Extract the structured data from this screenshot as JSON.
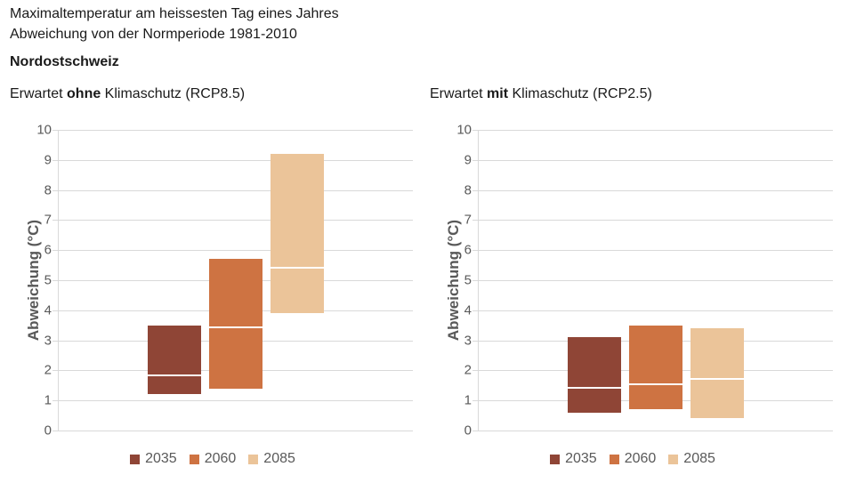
{
  "header": {
    "title_line1": "Maximaltemperatur am heissesten Tag eines Jahres",
    "title_line2": "Abweichung von der Normperiode 1981-2010",
    "region": "Nordostschweiz"
  },
  "panels": [
    {
      "heading_prefix": "Erwartet ",
      "heading_emphasis": "ohne",
      "heading_suffix": " Klimaschutz (RCP8.5)"
    },
    {
      "heading_prefix": "Erwartet ",
      "heading_emphasis": "mit",
      "heading_suffix": " Klimaschutz (RCP2.5)"
    }
  ],
  "colors": {
    "bar_2035": "#8F4536",
    "bar_2060": "#CE7342",
    "bar_2085": "#EBC499",
    "gridline": "#D9D9D9",
    "axis_text": "#595959",
    "median_line": "#FFFFFF",
    "title_text": "#1A1A1A"
  },
  "chart_data": [
    {
      "type": "bar",
      "subtype": "floating-range-bars-with-median",
      "title": "Erwartet ohne Klimaschutz (RCP8.5)",
      "ylabel": "Abweichung (°C)",
      "ylim": [
        0,
        10
      ],
      "yticks": [
        0,
        1,
        2,
        3,
        4,
        5,
        6,
        7,
        8,
        9,
        10
      ],
      "grid": true,
      "legend_position": "bottom",
      "series": [
        {
          "name": "2035",
          "low": 1.2,
          "median": 1.8,
          "high": 3.5,
          "color": "#8F4536"
        },
        {
          "name": "2060",
          "low": 1.4,
          "median": 3.4,
          "high": 5.7,
          "color": "#CE7342"
        },
        {
          "name": "2085",
          "low": 3.9,
          "median": 5.4,
          "high": 9.2,
          "color": "#EBC499"
        }
      ]
    },
    {
      "type": "bar",
      "subtype": "floating-range-bars-with-median",
      "title": "Erwartet mit Klimaschutz (RCP2.5)",
      "ylabel": "Abweichung (°C)",
      "ylim": [
        0,
        10
      ],
      "yticks": [
        0,
        1,
        2,
        3,
        4,
        5,
        6,
        7,
        8,
        9,
        10
      ],
      "grid": true,
      "legend_position": "bottom",
      "series": [
        {
          "name": "2035",
          "low": 0.6,
          "median": 1.4,
          "high": 3.1,
          "color": "#8F4536"
        },
        {
          "name": "2060",
          "low": 0.7,
          "median": 1.5,
          "high": 3.5,
          "color": "#CE7342"
        },
        {
          "name": "2085",
          "low": 0.4,
          "median": 1.7,
          "high": 3.4,
          "color": "#EBC499"
        }
      ]
    }
  ]
}
